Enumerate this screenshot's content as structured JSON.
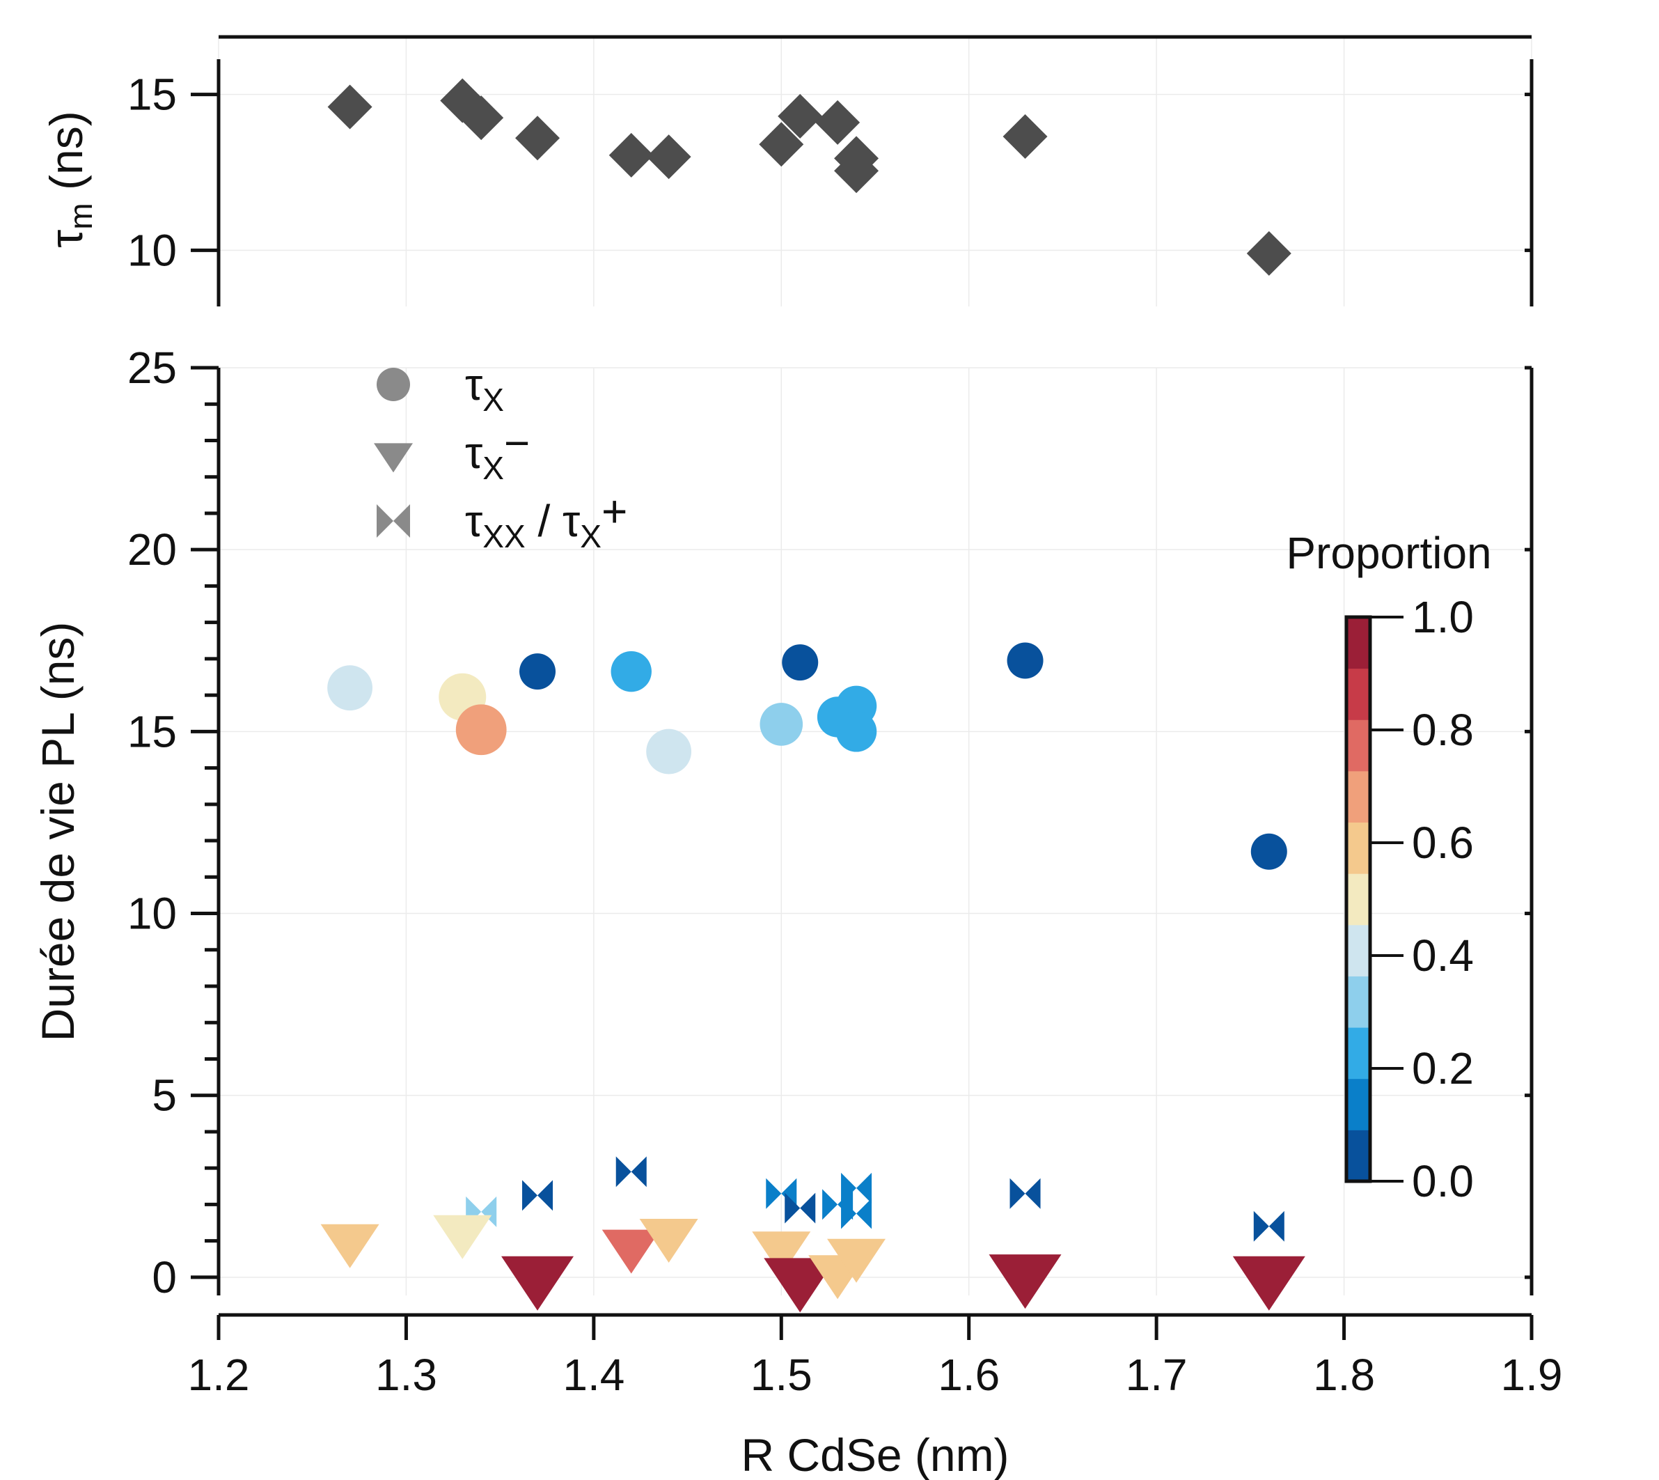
{
  "chart_data": [
    {
      "type": "scatter",
      "panel": "top",
      "ylabel": {
        "main": "τ",
        "sub": "m",
        "rest": " (ns)"
      },
      "xlim": [
        1.2,
        1.9
      ],
      "ylim": [
        8.2,
        16.8
      ],
      "yticks": [
        10,
        15
      ],
      "ytick_labels": [
        "10",
        "15"
      ],
      "marker": "diamond",
      "color": "#4d4d4d",
      "points": [
        {
          "x": 1.27,
          "y": 14.6
        },
        {
          "x": 1.33,
          "y": 14.8
        },
        {
          "x": 1.34,
          "y": 14.25
        },
        {
          "x": 1.37,
          "y": 13.6
        },
        {
          "x": 1.42,
          "y": 13.05
        },
        {
          "x": 1.44,
          "y": 13.0
        },
        {
          "x": 1.5,
          "y": 13.4
        },
        {
          "x": 1.51,
          "y": 14.3
        },
        {
          "x": 1.53,
          "y": 14.1
        },
        {
          "x": 1.54,
          "y": 12.95
        },
        {
          "x": 1.54,
          "y": 12.55
        },
        {
          "x": 1.63,
          "y": 13.65
        },
        {
          "x": 1.76,
          "y": 9.9
        }
      ]
    },
    {
      "type": "scatter",
      "panel": "bottom",
      "xlabel": "R CdSe (nm)",
      "ylabel": "Durée de vie PL (ns)",
      "xlim": [
        1.2,
        1.9
      ],
      "ylim": [
        -0.5,
        25
      ],
      "xticks": [
        1.2,
        1.3,
        1.4,
        1.5,
        1.6,
        1.7,
        1.8,
        1.9
      ],
      "xtick_labels": [
        "1.2",
        "1.3",
        "1.4",
        "1.5",
        "1.6",
        "1.7",
        "1.8",
        "1.9"
      ],
      "yticks": [
        0,
        5,
        10,
        15,
        20,
        25
      ],
      "ytick_labels": [
        "0",
        "5",
        "10",
        "15",
        "20",
        "25"
      ],
      "legend": [
        {
          "marker": "circle",
          "label": "τ",
          "sub": "X",
          "sup": ""
        },
        {
          "marker": "triangle",
          "label": "τ",
          "sub": "X",
          "sup": "−"
        },
        {
          "marker": "bowtie",
          "label": "τ",
          "sub": "XX",
          "mid": " / τ",
          "sub2": "X",
          "sup": "+"
        }
      ],
      "colorbar": {
        "title": "Proportion",
        "ticks": [
          0.0,
          0.2,
          0.4,
          0.6,
          0.8,
          1.0
        ],
        "tick_labels": [
          "0.0",
          "0.2",
          "0.4",
          "0.6",
          "0.8",
          "1.0"
        ],
        "colors": [
          "#08519c",
          "#0a7fc9",
          "#32abe6",
          "#8ecfec",
          "#cfe5ef",
          "#f3eac0",
          "#f4c98d",
          "#f0a07b",
          "#e06a63",
          "#c73b48",
          "#9b1f37"
        ]
      },
      "series": [
        {
          "name": "τX",
          "marker": "circle",
          "points": [
            {
              "x": 1.27,
              "y": 16.2,
              "p": 0.4
            },
            {
              "x": 1.33,
              "y": 15.95,
              "p": 0.5
            },
            {
              "x": 1.34,
              "y": 15.05,
              "p": 0.65
            },
            {
              "x": 1.37,
              "y": 16.65,
              "p": 0.0
            },
            {
              "x": 1.42,
              "y": 16.65,
              "p": 0.2
            },
            {
              "x": 1.44,
              "y": 14.45,
              "p": 0.4
            },
            {
              "x": 1.5,
              "y": 15.2,
              "p": 0.3
            },
            {
              "x": 1.51,
              "y": 16.9,
              "p": 0.0
            },
            {
              "x": 1.53,
              "y": 15.4,
              "p": 0.2
            },
            {
              "x": 1.54,
              "y": 15.7,
              "p": 0.2
            },
            {
              "x": 1.54,
              "y": 15.0,
              "p": 0.2
            },
            {
              "x": 1.63,
              "y": 16.95,
              "p": 0.0
            },
            {
              "x": 1.76,
              "y": 11.7,
              "p": 0.0
            }
          ]
        },
        {
          "name": "τX−",
          "marker": "triangle",
          "points": [
            {
              "x": 1.27,
              "y": 0.95,
              "p": 0.6
            },
            {
              "x": 1.33,
              "y": 1.2,
              "p": 0.5
            },
            {
              "x": 1.37,
              "y": -0.05,
              "p": 1.0
            },
            {
              "x": 1.42,
              "y": 0.8,
              "p": 0.8
            },
            {
              "x": 1.44,
              "y": 1.1,
              "p": 0.6
            },
            {
              "x": 1.5,
              "y": 0.75,
              "p": 0.6
            },
            {
              "x": 1.51,
              "y": -0.1,
              "p": 1.0
            },
            {
              "x": 1.53,
              "y": 0.1,
              "p": 0.6
            },
            {
              "x": 1.54,
              "y": 0.55,
              "p": 0.6
            },
            {
              "x": 1.63,
              "y": 0.0,
              "p": 1.0
            },
            {
              "x": 1.76,
              "y": -0.05,
              "p": 1.0
            }
          ]
        },
        {
          "name": "τXX / τX+",
          "marker": "bowtie",
          "points": [
            {
              "x": 1.34,
              "y": 1.8,
              "p": 0.3
            },
            {
              "x": 1.37,
              "y": 2.25,
              "p": 0.0
            },
            {
              "x": 1.42,
              "y": 2.9,
              "p": 0.0
            },
            {
              "x": 1.5,
              "y": 2.3,
              "p": 0.1
            },
            {
              "x": 1.51,
              "y": 1.9,
              "p": 0.0
            },
            {
              "x": 1.53,
              "y": 2.0,
              "p": 0.1
            },
            {
              "x": 1.54,
              "y": 2.45,
              "p": 0.1
            },
            {
              "x": 1.54,
              "y": 1.75,
              "p": 0.1
            },
            {
              "x": 1.63,
              "y": 2.3,
              "p": 0.0
            },
            {
              "x": 1.76,
              "y": 1.4,
              "p": 0.0
            }
          ]
        }
      ]
    }
  ]
}
